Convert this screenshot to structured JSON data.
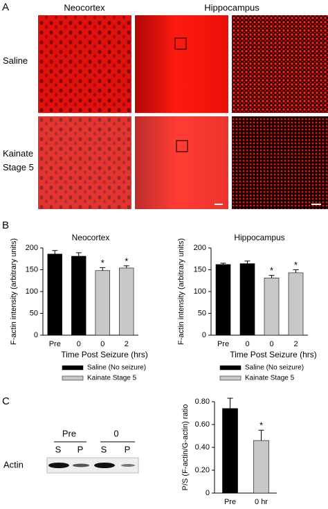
{
  "panel_letters": [
    "A",
    "B",
    "C"
  ],
  "panel_a": {
    "column_labels": [
      "Neocortex",
      "Hippocampus"
    ],
    "row_labels": [
      "Saline",
      "Kainate Stage 5"
    ]
  },
  "blot": {
    "groups": [
      "Pre",
      "0"
    ],
    "lanes": [
      "S",
      "P",
      "S",
      "P"
    ],
    "row_label": "Actin"
  },
  "chart_data": [
    {
      "type": "bar",
      "title": "Neocortex",
      "y_label": "F-actin intensity (arbitrary units)",
      "x_label": "Time Post Seizure (hrs)",
      "categories": [
        "Pre",
        "0",
        "0",
        "2"
      ],
      "series": [
        {
          "name": "Saline (No seizure)",
          "color": "#000000",
          "values": [
            186,
            181,
            null,
            null
          ],
          "errors": [
            8,
            8,
            null,
            null
          ]
        },
        {
          "name": "Kainate Stage 5",
          "color": "#c8c8c8",
          "values": [
            null,
            null,
            148,
            154
          ],
          "errors": [
            null,
            null,
            7,
            5
          ]
        }
      ],
      "markers": [
        null,
        null,
        "*",
        "*"
      ],
      "ylim": [
        0,
        200
      ],
      "yticks": [
        0,
        50,
        100,
        150,
        200
      ]
    },
    {
      "type": "bar",
      "title": "Hippocampus",
      "y_label": "F-actin intensity (arbitrary units)",
      "x_label": "Time Post Seizure (hrs)",
      "categories": [
        "Pre",
        "0",
        "0",
        "2"
      ],
      "series": [
        {
          "name": "Saline (No seizure)",
          "color": "#000000",
          "values": [
            162,
            164,
            null,
            null
          ],
          "errors": [
            3,
            6,
            null,
            null
          ]
        },
        {
          "name": "Kainate Stage 5",
          "color": "#c8c8c8",
          "values": [
            null,
            null,
            131,
            143
          ],
          "errors": [
            null,
            null,
            6,
            7
          ]
        }
      ],
      "markers": [
        null,
        null,
        "*",
        "*"
      ],
      "ylim": [
        0,
        200
      ],
      "yticks": [
        0,
        50,
        100,
        150,
        200
      ]
    },
    {
      "type": "bar",
      "y_label": "P/S (F-actin/G-actin) ratio",
      "categories": [
        "Pre",
        "0 hr"
      ],
      "values": [
        0.74,
        0.46
      ],
      "errors": [
        0.09,
        0.09
      ],
      "colors": [
        "#000000",
        "#c8c8c8"
      ],
      "markers": [
        null,
        "*"
      ],
      "ylim": [
        0,
        0.8
      ],
      "yticks": [
        0,
        {
          "value": 0.2,
          "label": "0.20"
        },
        {
          "value": 0.4,
          "label": "0.40"
        },
        {
          "value": 0.6,
          "label": "0.60"
        },
        {
          "value": 0.8,
          "label": "0.80"
        }
      ]
    }
  ]
}
